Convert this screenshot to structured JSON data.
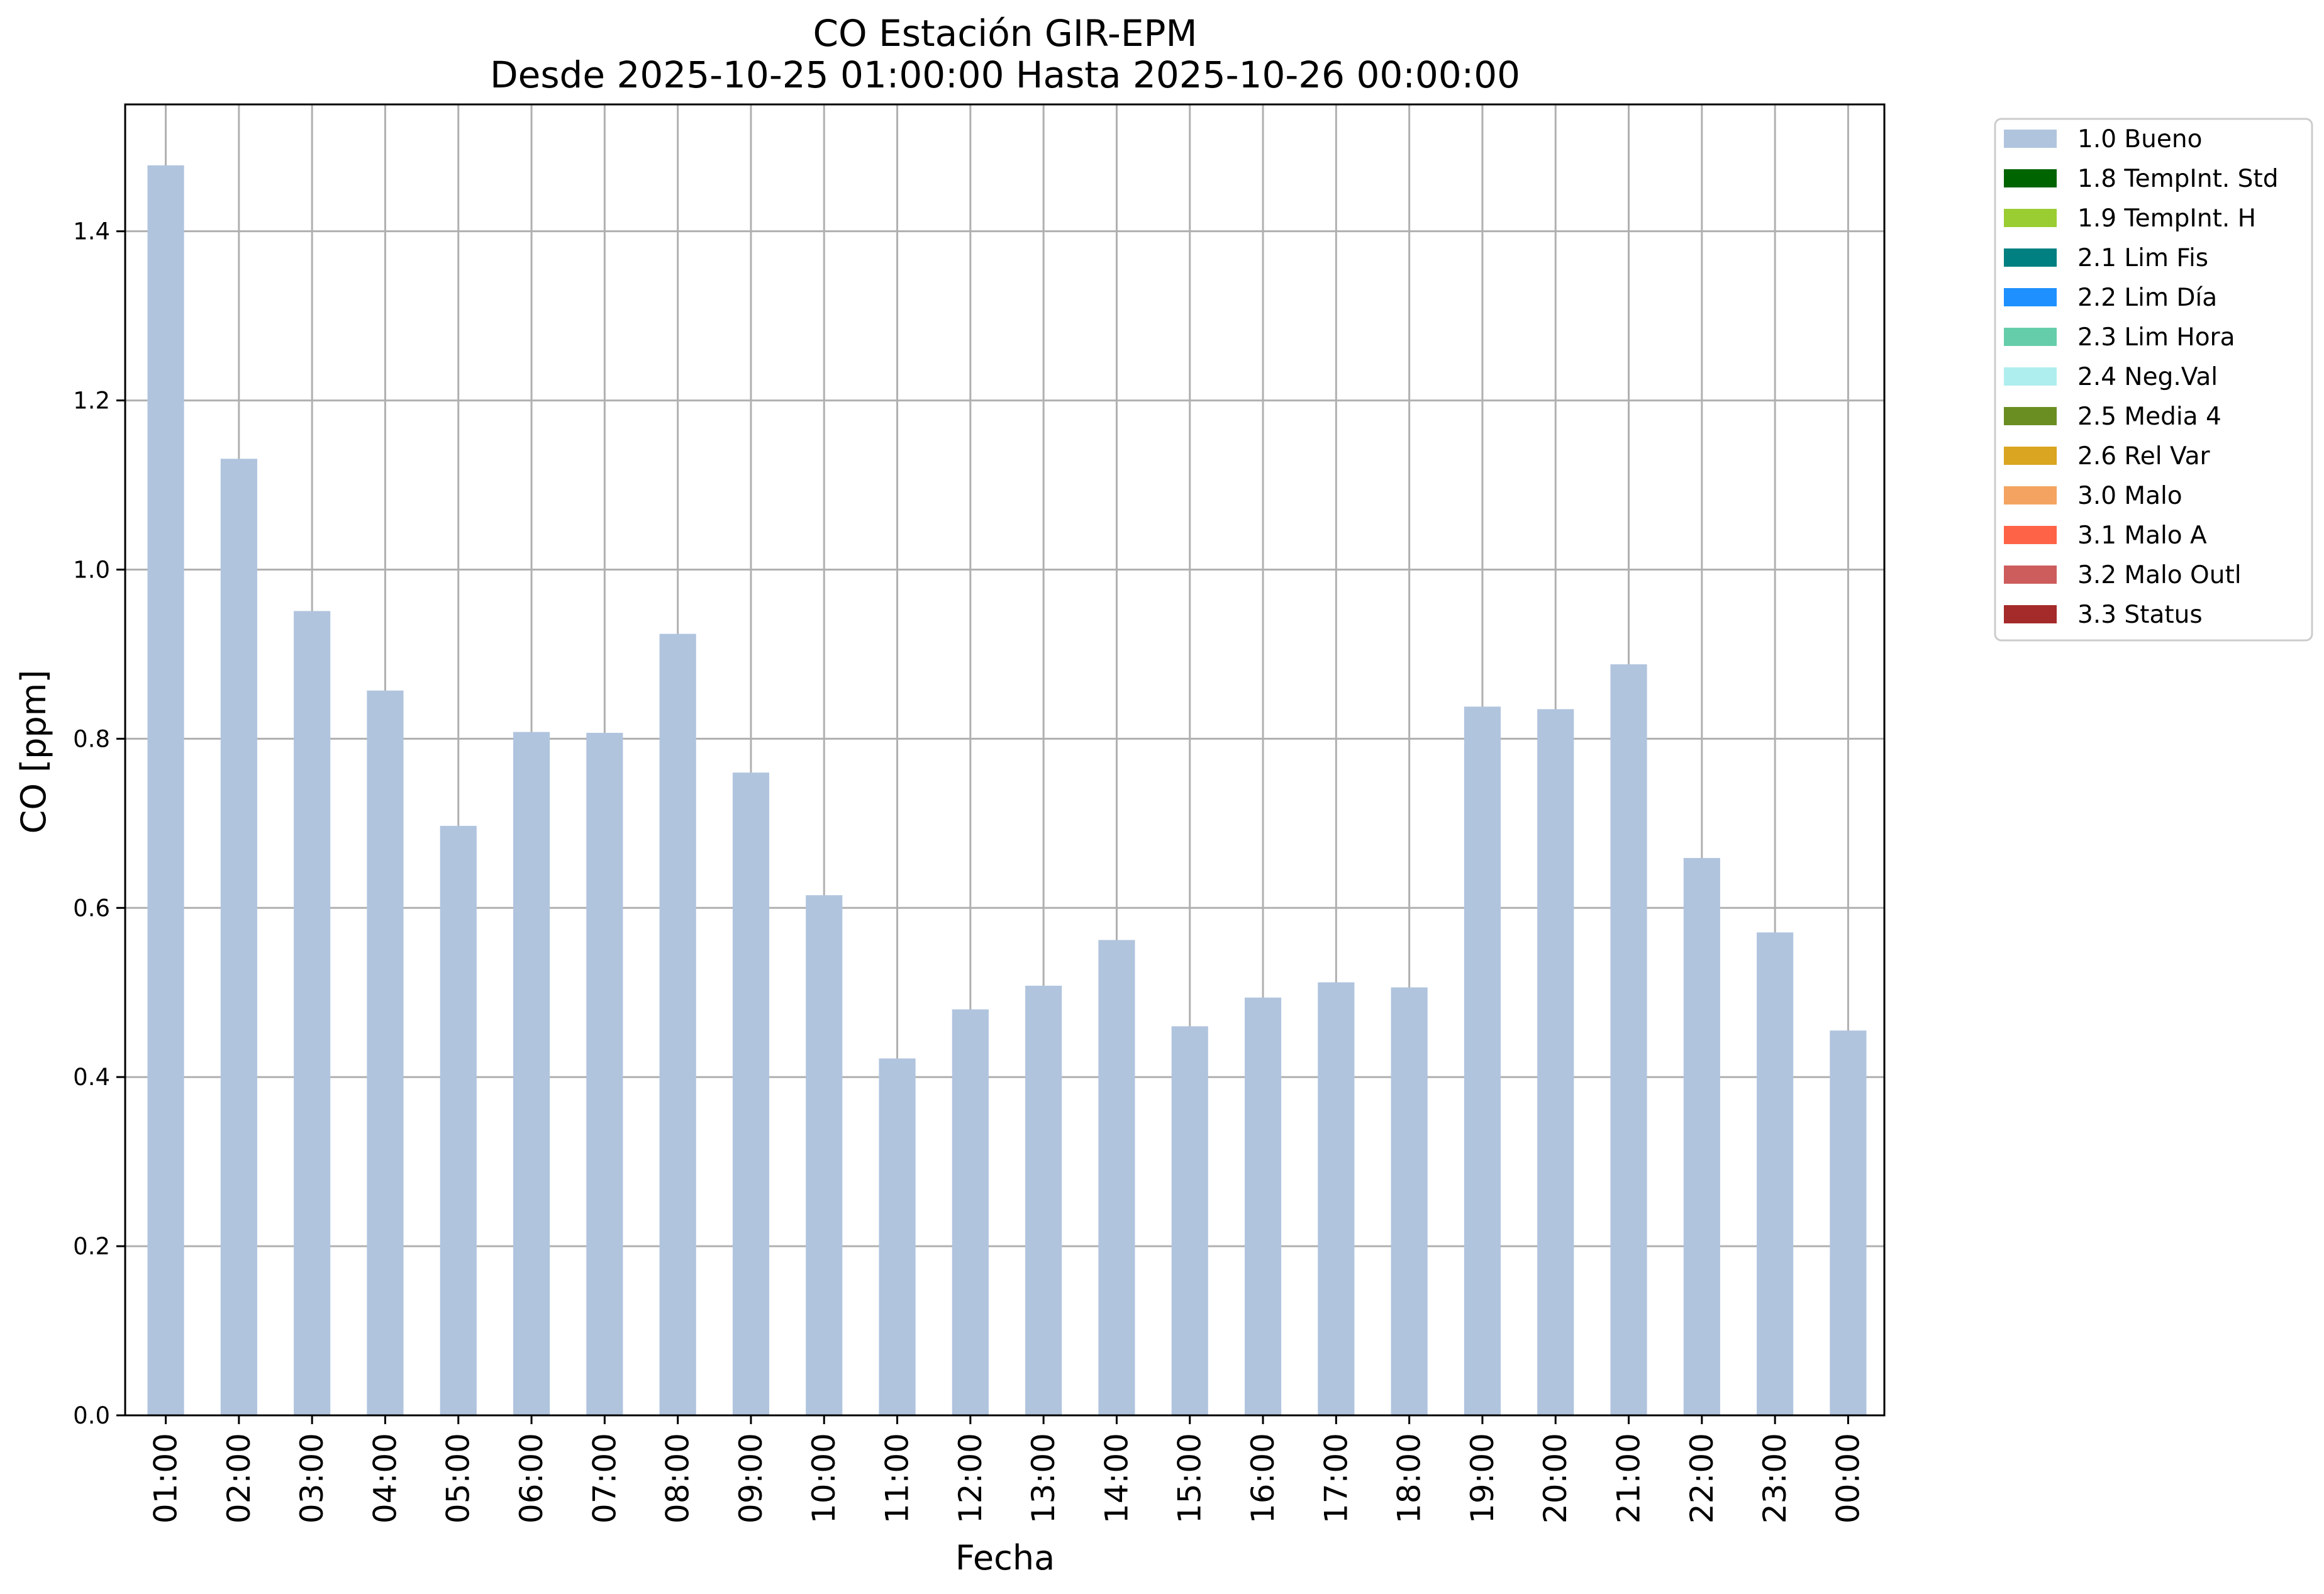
{
  "chart_data": {
    "type": "bar",
    "title": "CO Estación GIR-EPM",
    "subtitle": "Desde 2025-10-25 01:00:00 Hasta 2025-10-26 00:00:00",
    "xlabel": "Fecha",
    "ylabel": "CO [ppm]",
    "ylim": [
      0,
      1.55
    ],
    "yticks": [
      "0.0",
      "0.2",
      "0.4",
      "0.6",
      "0.8",
      "1.0",
      "1.2",
      "1.4"
    ],
    "grid": true,
    "legend_position": "outside-top-right",
    "categories": [
      "01:00",
      "02:00",
      "03:00",
      "04:00",
      "05:00",
      "06:00",
      "07:00",
      "08:00",
      "09:00",
      "10:00",
      "11:00",
      "12:00",
      "13:00",
      "14:00",
      "15:00",
      "16:00",
      "17:00",
      "18:00",
      "19:00",
      "20:00",
      "21:00",
      "22:00",
      "23:00",
      "00:00"
    ],
    "series": [
      {
        "name": "1.0 Bueno",
        "color": "#b0c4de",
        "values": [
          1.478,
          1.131,
          0.951,
          0.857,
          0.697,
          0.808,
          0.807,
          0.924,
          0.76,
          0.615,
          0.422,
          0.48,
          0.508,
          0.562,
          0.46,
          0.494,
          0.512,
          0.506,
          0.838,
          0.835,
          0.888,
          0.659,
          0.571,
          0.455
        ]
      }
    ],
    "legend": [
      {
        "label": "1.0 Bueno",
        "color": "#b0c4de"
      },
      {
        "label": "1.8 TempInt. Std",
        "color": "#006400"
      },
      {
        "label": "1.9 TempInt. H",
        "color": "#9acd32"
      },
      {
        "label": "2.1 Lim Fis",
        "color": "#008080"
      },
      {
        "label": "2.2 Lim Día",
        "color": "#1e90ff"
      },
      {
        "label": "2.3 Lim Hora",
        "color": "#66cdaa"
      },
      {
        "label": "2.4 Neg.Val",
        "color": "#afeeee"
      },
      {
        "label": "2.5 Media 4",
        "color": "#6b8e23"
      },
      {
        "label": "2.6 Rel Var",
        "color": "#daa520"
      },
      {
        "label": "3.0 Malo",
        "color": "#f4a460"
      },
      {
        "label": "3.1 Malo A",
        "color": "#ff6347"
      },
      {
        "label": "3.2 Malo Outl",
        "color": "#cd5c5c"
      },
      {
        "label": "3.3 Status",
        "color": "#a52a2a"
      }
    ]
  }
}
